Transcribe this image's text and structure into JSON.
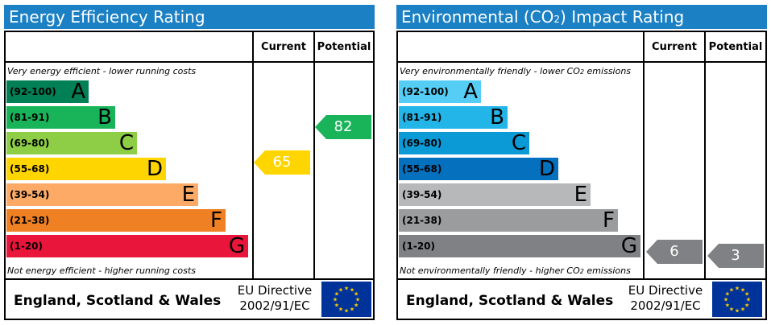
{
  "energy": {
    "title": "Energy Efficiency Rating",
    "col_current": "Current",
    "col_potential": "Potential",
    "top_note": "Very energy efficient - lower running costs",
    "bottom_note": "Not energy efficient - higher running costs",
    "bands": [
      {
        "range": "(92-100)",
        "letter": "A",
        "color": "#008054"
      },
      {
        "range": "(81-91)",
        "letter": "B",
        "color": "#19b459"
      },
      {
        "range": "(69-80)",
        "letter": "C",
        "color": "#8dce46"
      },
      {
        "range": "(55-68)",
        "letter": "D",
        "color": "#ffd500"
      },
      {
        "range": "(39-54)",
        "letter": "E",
        "color": "#fcaa65"
      },
      {
        "range": "(21-38)",
        "letter": "F",
        "color": "#ef8023"
      },
      {
        "range": "(1-20)",
        "letter": "G",
        "color": "#e9153b"
      }
    ],
    "current": {
      "value": "65",
      "color": "#ffd500"
    },
    "potential": {
      "value": "82",
      "color": "#19b459"
    },
    "footer_region": "England, Scotland & Wales",
    "footer_directive_line1": "EU Directive",
    "footer_directive_line2": "2002/91/EC"
  },
  "environmental": {
    "title_prefix": "Environmental (CO",
    "title_sub": "2",
    "title_suffix": ") Impact Rating",
    "col_current": "Current",
    "col_potential": "Potential",
    "top_note_prefix": "Very environmentally friendly - lower CO",
    "top_note_sub": "2",
    "top_note_suffix": " emissions",
    "bottom_note_prefix": "Not environmentally friendly - higher CO",
    "bottom_note_sub": "2",
    "bottom_note_suffix": " emissions",
    "bands": [
      {
        "range": "(92-100)",
        "letter": "A",
        "color": "#55cdf5"
      },
      {
        "range": "(81-91)",
        "letter": "B",
        "color": "#23b5e8"
      },
      {
        "range": "(69-80)",
        "letter": "C",
        "color": "#0c9ad7"
      },
      {
        "range": "(55-68)",
        "letter": "D",
        "color": "#0570be"
      },
      {
        "range": "(39-54)",
        "letter": "E",
        "color": "#b7b8ba"
      },
      {
        "range": "(21-38)",
        "letter": "F",
        "color": "#9b9c9e"
      },
      {
        "range": "(1-20)",
        "letter": "G",
        "color": "#808184"
      }
    ],
    "current": {
      "value": "6",
      "color": "#808184"
    },
    "potential": {
      "value": "3",
      "color": "#808184"
    },
    "footer_region": "England, Scotland & Wales",
    "footer_directive_line1": "EU Directive",
    "footer_directive_line2": "2002/91/EC"
  },
  "icons": {
    "eu_flag": "eu-flag-icon"
  },
  "colors": {
    "title_bar": "#1b80c4",
    "eu_flag_bg": "#003399",
    "eu_star": "#ffcc00"
  }
}
